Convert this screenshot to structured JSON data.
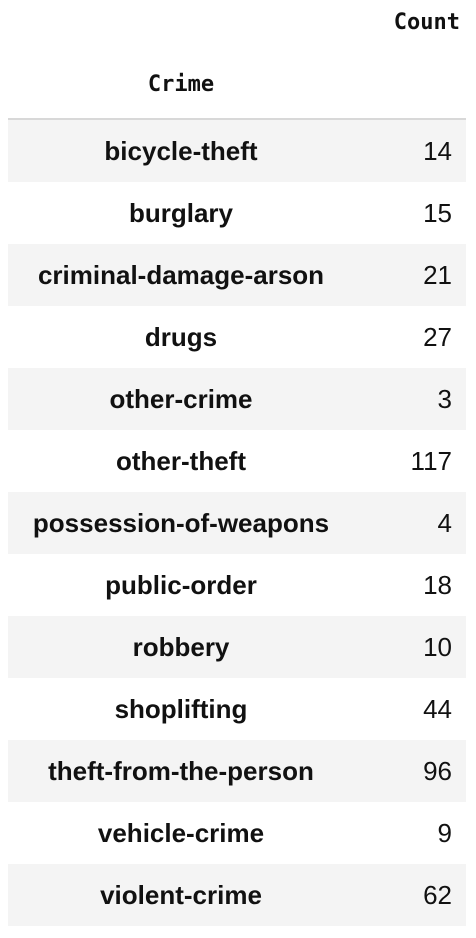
{
  "table": {
    "column_header": "Count",
    "index_header": "Crime",
    "rows": [
      {
        "label": "bicycle-theft",
        "value": "14"
      },
      {
        "label": "burglary",
        "value": "15"
      },
      {
        "label": "criminal-damage-arson",
        "value": "21"
      },
      {
        "label": "drugs",
        "value": "27"
      },
      {
        "label": "other-crime",
        "value": "3"
      },
      {
        "label": "other-theft",
        "value": "117"
      },
      {
        "label": "possession-of-weapons",
        "value": "4"
      },
      {
        "label": "public-order",
        "value": "18"
      },
      {
        "label": "robbery",
        "value": "10"
      },
      {
        "label": "shoplifting",
        "value": "44"
      },
      {
        "label": "theft-from-the-person",
        "value": "96"
      },
      {
        "label": "vehicle-crime",
        "value": "9"
      },
      {
        "label": "violent-crime",
        "value": "62"
      }
    ]
  },
  "colors": {
    "stripe": "#f4f4f4",
    "rule": "#d8d8d8",
    "text": "#111111"
  }
}
